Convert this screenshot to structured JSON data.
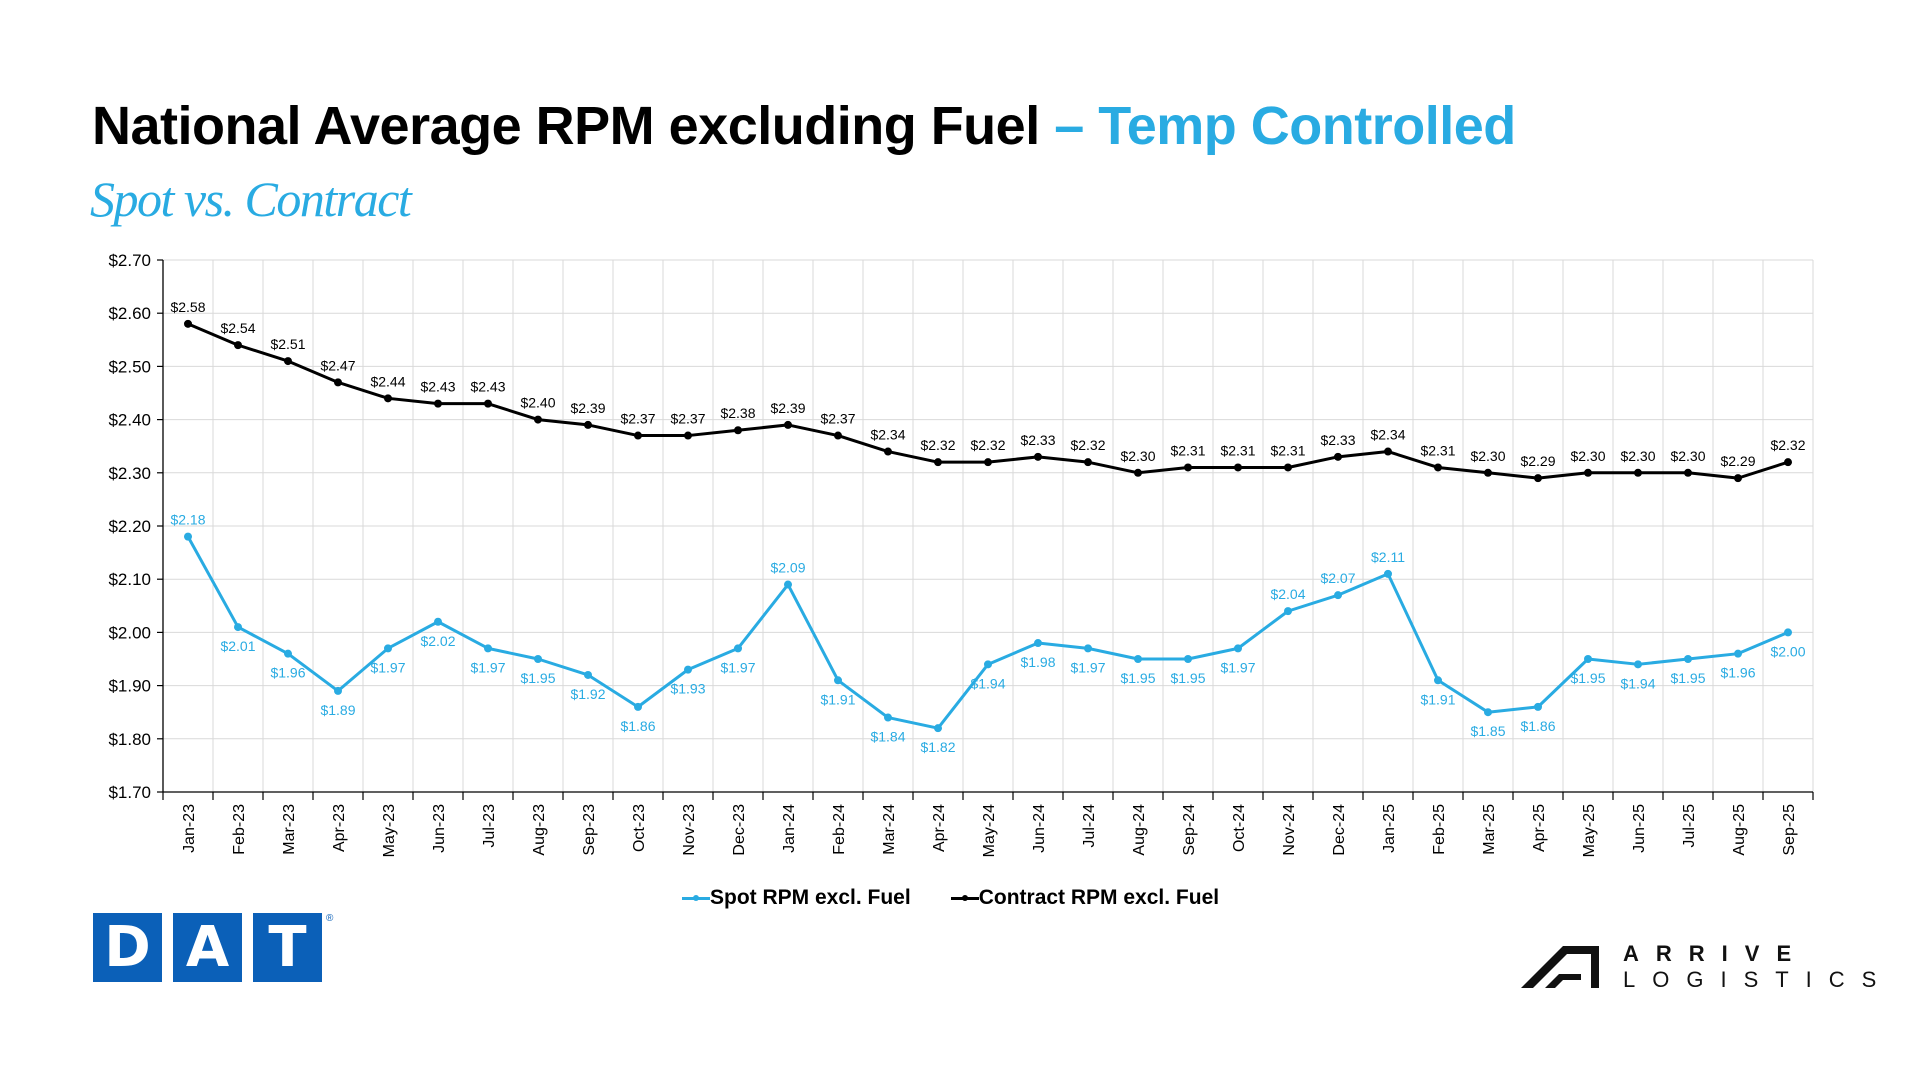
{
  "header": {
    "title_main": "National Average RPM excluding Fuel",
    "title_accent": "– Temp Controlled",
    "subtitle": "Spot vs. Contract"
  },
  "colors": {
    "spot": "#29ABE2",
    "contract": "#000000",
    "grid": "#D9D9D9",
    "dat_blue": "#0B60B8"
  },
  "chart_data": {
    "type": "line",
    "title": "National Average RPM excluding Fuel – Temp Controlled",
    "subtitle": "Spot vs. Contract",
    "xlabel": "",
    "ylabel": "",
    "ylim": [
      1.7,
      2.7
    ],
    "yticks": [
      1.7,
      1.8,
      1.9,
      2.0,
      2.1,
      2.2,
      2.3,
      2.4,
      2.5,
      2.6,
      2.7
    ],
    "ytick_labels": [
      "$1.70",
      "$1.80",
      "$1.90",
      "$2.00",
      "$2.10",
      "$2.20",
      "$2.30",
      "$2.40",
      "$2.50",
      "$2.60",
      "$2.70"
    ],
    "grid": true,
    "legend_position": "bottom-center",
    "categories": [
      "Jan-23",
      "Feb-23",
      "Mar-23",
      "Apr-23",
      "May-23",
      "Jun-23",
      "Jul-23",
      "Aug-23",
      "Sep-23",
      "Oct-23",
      "Nov-23",
      "Dec-23",
      "Jan-24",
      "Feb-24",
      "Mar-24",
      "Apr-24",
      "May-24",
      "Jun-24",
      "Jul-24",
      "Aug-24",
      "Sep-24",
      "Oct-24",
      "Nov-24",
      "Dec-24",
      "Jan-25",
      "Feb-25",
      "Mar-25",
      "Apr-25",
      "May-25",
      "Jun-25",
      "Jul-25",
      "Aug-25",
      "Sep-25"
    ],
    "series": [
      {
        "name": "Spot RPM excl. Fuel",
        "color": "#29ABE2",
        "values": [
          2.18,
          2.01,
          1.96,
          1.89,
          1.97,
          2.02,
          1.97,
          1.95,
          1.92,
          1.86,
          1.93,
          1.97,
          2.09,
          1.91,
          1.84,
          1.82,
          1.94,
          1.98,
          1.97,
          1.95,
          1.95,
          1.97,
          2.04,
          2.07,
          2.11,
          1.91,
          1.85,
          1.86,
          1.95,
          1.94,
          1.95,
          1.96,
          2.0
        ],
        "labels": [
          "$2.18",
          "$2.01",
          "$1.96",
          "$1.89",
          "$1.97",
          "$2.02",
          "$1.97",
          "$1.95",
          "$1.92",
          "$1.86",
          "$1.93",
          "$1.97",
          "$2.09",
          "$1.91",
          "$1.84",
          "$1.82",
          "$1.94",
          "$1.98",
          "$1.97",
          "$1.95",
          "$1.95",
          "$1.97",
          "$2.04",
          "$2.07",
          "$2.11",
          "$1.91",
          "$1.85",
          "$1.86",
          "$1.95",
          "$1.94",
          "$1.95",
          "$1.96",
          "$2.00"
        ]
      },
      {
        "name": "Contract RPM excl. Fuel",
        "color": "#000000",
        "values": [
          2.58,
          2.54,
          2.51,
          2.47,
          2.44,
          2.43,
          2.43,
          2.4,
          2.39,
          2.37,
          2.37,
          2.38,
          2.39,
          2.37,
          2.34,
          2.32,
          2.32,
          2.33,
          2.32,
          2.3,
          2.31,
          2.31,
          2.31,
          2.33,
          2.34,
          2.31,
          2.3,
          2.29,
          2.3,
          2.3,
          2.3,
          2.29,
          2.32
        ],
        "labels": [
          "$2.58",
          "$2.54",
          "$2.51",
          "$2.47",
          "$2.44",
          "$2.43",
          "$2.43",
          "$2.40",
          "$2.39",
          "$2.37",
          "$2.37",
          "$2.38",
          "$2.39",
          "$2.37",
          "$2.34",
          "$2.32",
          "$2.32",
          "$2.33",
          "$2.32",
          "$2.30",
          "$2.31",
          "$2.31",
          "$2.31",
          "$2.33",
          "$2.34",
          "$2.31",
          "$2.30",
          "$2.29",
          "$2.30",
          "$2.30",
          "$2.30",
          "$2.29",
          "$2.32"
        ]
      }
    ]
  },
  "legend": {
    "items": [
      {
        "label": "Spot RPM excl. Fuel"
      },
      {
        "label": "Contract RPM excl. Fuel"
      }
    ]
  },
  "logos": {
    "dat": {
      "letters": [
        "D",
        "A",
        "T"
      ],
      "registered": "®"
    },
    "arrive": {
      "line1": "ARRIVE",
      "line2": "LOGISTICS"
    }
  }
}
